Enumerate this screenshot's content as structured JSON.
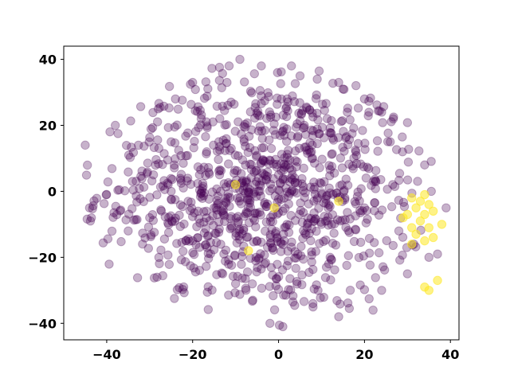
{
  "chart_data": {
    "type": "scatter",
    "title": "",
    "xlabel": "",
    "ylabel": "",
    "xlim": [
      -50,
      42
    ],
    "ylim": [
      -45,
      44
    ],
    "xticks": [
      -40,
      -20,
      0,
      20,
      40
    ],
    "yticks": [
      -40,
      -20,
      0,
      20,
      40
    ],
    "xtick_labels": [
      "−40",
      "−20",
      "0",
      "20",
      "40"
    ],
    "ytick_labels": [
      "−40",
      "−20",
      "0",
      "20",
      "40"
    ],
    "grid": false,
    "legend": "none",
    "colors": {
      "class_0": "#440154",
      "class_1": "#fde725"
    },
    "marker_alpha": 0.3,
    "cloud": {
      "count": 1000,
      "x_range": [
        -46,
        38
      ],
      "y_range": [
        -41,
        40
      ]
    },
    "series": [
      {
        "values": [
          [
            -44,
            -5
          ],
          [
            -45,
            14
          ],
          [
            -38,
            20
          ],
          [
            -28,
            25
          ],
          [
            -24,
            28
          ],
          [
            -20,
            33
          ],
          [
            -12,
            33
          ],
          [
            -9,
            40
          ],
          [
            -4,
            38
          ],
          [
            3,
            38
          ],
          [
            5,
            35
          ],
          [
            9,
            34
          ],
          [
            14,
            33
          ],
          [
            15,
            31
          ],
          [
            20,
            28
          ],
          [
            24,
            24
          ],
          [
            -34,
            3
          ],
          [
            -30,
            -8
          ],
          [
            -25,
            0
          ],
          [
            -20,
            -15
          ],
          [
            -13,
            -25
          ],
          [
            -6,
            -33
          ],
          [
            -2,
            -40
          ],
          [
            1,
            -41
          ],
          [
            8,
            -34
          ],
          [
            14,
            -38
          ],
          [
            22,
            -36
          ],
          [
            30,
            -25
          ],
          [
            35,
            -20
          ],
          [
            37,
            -19
          ],
          [
            39,
            -5
          ],
          [
            34,
            8
          ],
          [
            26,
            15
          ],
          [
            18,
            12
          ],
          [
            10,
            -10
          ],
          [
            0,
            5
          ],
          [
            -8,
            15
          ],
          [
            6,
            20
          ],
          [
            -15,
            -5
          ],
          [
            12,
            -20
          ],
          [
            20,
            -5
          ],
          [
            -5,
            -15
          ],
          [
            -25,
            15
          ],
          [
            28,
            -12
          ],
          [
            -35,
            -12
          ],
          [
            2,
            28
          ],
          [
            -18,
            22
          ],
          [
            16,
            24
          ],
          [
            -10,
            -28
          ],
          [
            24,
            -30
          ]
        ]
      },
      {
        "values": [
          [
            31,
            -2
          ],
          [
            33,
            -3
          ],
          [
            34,
            -1
          ],
          [
            35,
            -4
          ],
          [
            32,
            -5
          ],
          [
            34,
            -7
          ],
          [
            36,
            -6
          ],
          [
            33,
            -9
          ],
          [
            35,
            -11
          ],
          [
            30,
            -7
          ],
          [
            29,
            -8
          ],
          [
            31,
            -11
          ],
          [
            32,
            -13
          ],
          [
            36,
            -14
          ],
          [
            34,
            -15
          ],
          [
            38,
            -10
          ],
          [
            37,
            -27
          ],
          [
            34,
            -29
          ],
          [
            35,
            -30
          ],
          [
            31,
            -16
          ],
          [
            -10,
            2
          ],
          [
            -7,
            -18
          ],
          [
            14,
            -3
          ],
          [
            -1,
            -5
          ]
        ]
      }
    ]
  }
}
